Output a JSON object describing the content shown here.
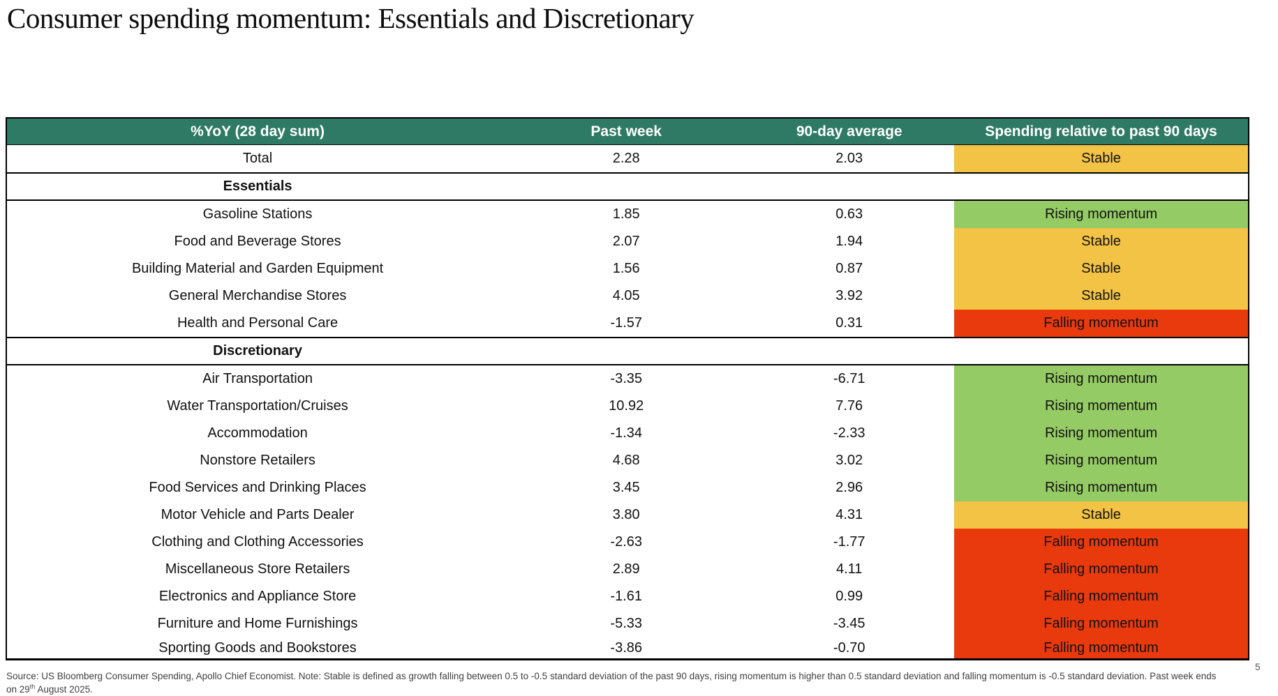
{
  "page": {
    "title": "Consumer spending momentum: Essentials and Discretionary",
    "page_number": "5"
  },
  "colors": {
    "header_bg": "#2F7A64",
    "header_text": "#FFFFFF",
    "stable_bg": "#F2C344",
    "rising_bg": "#95CB64",
    "falling_bg": "#E93A0E",
    "border": "#000000"
  },
  "table": {
    "columns": [
      "%YoY (28 day sum)",
      "Past week",
      "90-day average",
      "Spending relative to past 90 days"
    ],
    "status_labels": {
      "stable": "Stable",
      "rising": "Rising momentum",
      "falling": "Falling momentum"
    },
    "rows": [
      {
        "type": "data",
        "total": true,
        "category": "Total",
        "past_week": "2.28",
        "avg_90day": "2.03",
        "status": "Stable"
      },
      {
        "type": "section",
        "category": "Essentials"
      },
      {
        "type": "data",
        "category": "Gasoline Stations",
        "past_week": "1.85",
        "avg_90day": "0.63",
        "status": "Rising momentum"
      },
      {
        "type": "data",
        "category": "Food and Beverage Stores",
        "past_week": "2.07",
        "avg_90day": "1.94",
        "status": "Stable"
      },
      {
        "type": "data",
        "category": "Building Material and Garden Equipment",
        "past_week": "1.56",
        "avg_90day": "0.87",
        "status": "Stable"
      },
      {
        "type": "data",
        "category": "General Merchandise Stores",
        "past_week": "4.05",
        "avg_90day": "3.92",
        "status": "Stable"
      },
      {
        "type": "data",
        "category": "Health and Personal Care",
        "past_week": "-1.57",
        "avg_90day": "0.31",
        "status": "Falling momentum"
      },
      {
        "type": "section",
        "category": "Discretionary"
      },
      {
        "type": "data",
        "category": "Air Transportation",
        "past_week": "-3.35",
        "avg_90day": "-6.71",
        "status": "Rising momentum"
      },
      {
        "type": "data",
        "category": "Water Transportation/Cruises",
        "past_week": "10.92",
        "avg_90day": "7.76",
        "status": "Rising momentum"
      },
      {
        "type": "data",
        "category": "Accommodation",
        "past_week": "-1.34",
        "avg_90day": "-2.33",
        "status": "Rising momentum"
      },
      {
        "type": "data",
        "category": "Nonstore Retailers",
        "past_week": "4.68",
        "avg_90day": "3.02",
        "status": "Rising momentum"
      },
      {
        "type": "data",
        "category": "Food Services and Drinking Places",
        "past_week": "3.45",
        "avg_90day": "2.96",
        "status": "Rising momentum"
      },
      {
        "type": "data",
        "category": "Motor Vehicle and Parts Dealer",
        "past_week": "3.80",
        "avg_90day": "4.31",
        "status": "Stable"
      },
      {
        "type": "data",
        "category": "Clothing and Clothing Accessories",
        "past_week": "-2.63",
        "avg_90day": "-1.77",
        "status": "Falling momentum"
      },
      {
        "type": "data",
        "category": "Miscellaneous Store Retailers",
        "past_week": "2.89",
        "avg_90day": "4.11",
        "status": "Falling momentum"
      },
      {
        "type": "data",
        "category": "Electronics and Appliance Store",
        "past_week": "-1.61",
        "avg_90day": "0.99",
        "status": "Falling momentum"
      },
      {
        "type": "data",
        "category": "Furniture and Home Furnishings",
        "past_week": "-5.33",
        "avg_90day": "-3.45",
        "status": "Falling momentum"
      },
      {
        "type": "data",
        "category": "Sporting Goods and Bookstores",
        "past_week": "-3.86",
        "avg_90day": "-0.70",
        "status": "Falling momentum"
      }
    ]
  },
  "footer": {
    "before_sup": "Source: US Bloomberg Consumer Spending, Apollo Chief Economist. Note: Stable is defined as growth falling between 0.5 to -0.5 standard deviation of the past 90 days, rising momentum is higher than 0.5 standard deviation and falling momentum is -0.5 standard deviation. Past week ends on 29",
    "sup": "th",
    "after_sup": " August 2025."
  }
}
